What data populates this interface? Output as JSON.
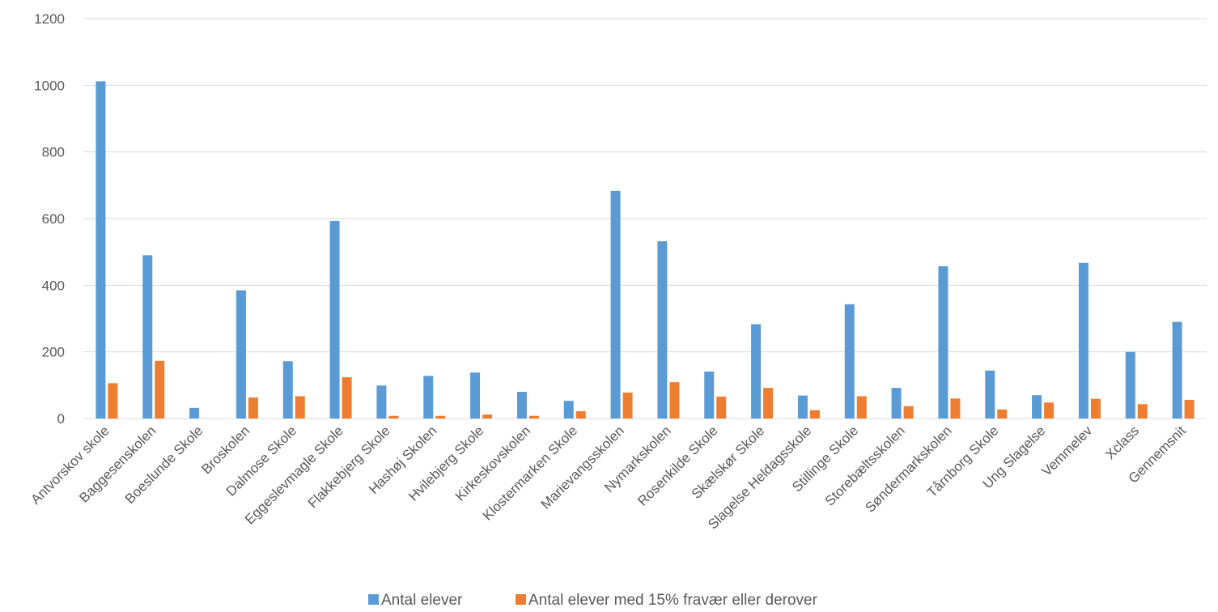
{
  "colors": {
    "series_1": "#5B9BD5",
    "series_2": "#ED7D31",
    "grid": "#D9D9D9",
    "text": "#595959"
  },
  "chart_data": {
    "type": "bar",
    "title": "",
    "xlabel": "",
    "ylabel": "",
    "ylim": [
      0,
      1200
    ],
    "yticks": [
      "0",
      "200",
      "400",
      "600",
      "800",
      "1000",
      "1200"
    ],
    "grid": true,
    "legend_position": "bottom",
    "categories": [
      "Antvorskov skole",
      "Baggesenskolen",
      "Boeslunde Skole",
      "Broskolen",
      "Dalmose Skole",
      "Eggeslevmagle Skole",
      "Flakkebjerg Skole",
      "Hashøj Skolen",
      "Hvilebjerg Skole",
      "Kirkeskovskolen",
      "Klostermarken Skole",
      "Marievangsskolen",
      "Nymarkskolen",
      "Rosenkilde Skole",
      "Skælskør Skole",
      "Slagelse Heldagsskole",
      "Stillinge Skole",
      "Storebæltsskolen",
      "Søndermarkskolen",
      "Tårnborg Skole",
      "Ung Slagelse",
      "Vemmelev",
      "Xclass",
      "Gennemsnit"
    ],
    "series": [
      {
        "name": "Antal elever",
        "values": [
          1012,
          490,
          32,
          385,
          172,
          593,
          99,
          128,
          138,
          80,
          53,
          683,
          532,
          141,
          283,
          69,
          343,
          92,
          457,
          144,
          70,
          467,
          200,
          290
        ]
      },
      {
        "name": "Antal elever med 15% fravær eller derover",
        "values": [
          106,
          173,
          0,
          63,
          67,
          124,
          8,
          8,
          12,
          8,
          22,
          78,
          109,
          66,
          92,
          25,
          67,
          37,
          60,
          27,
          48,
          59,
          43,
          56
        ]
      }
    ]
  }
}
